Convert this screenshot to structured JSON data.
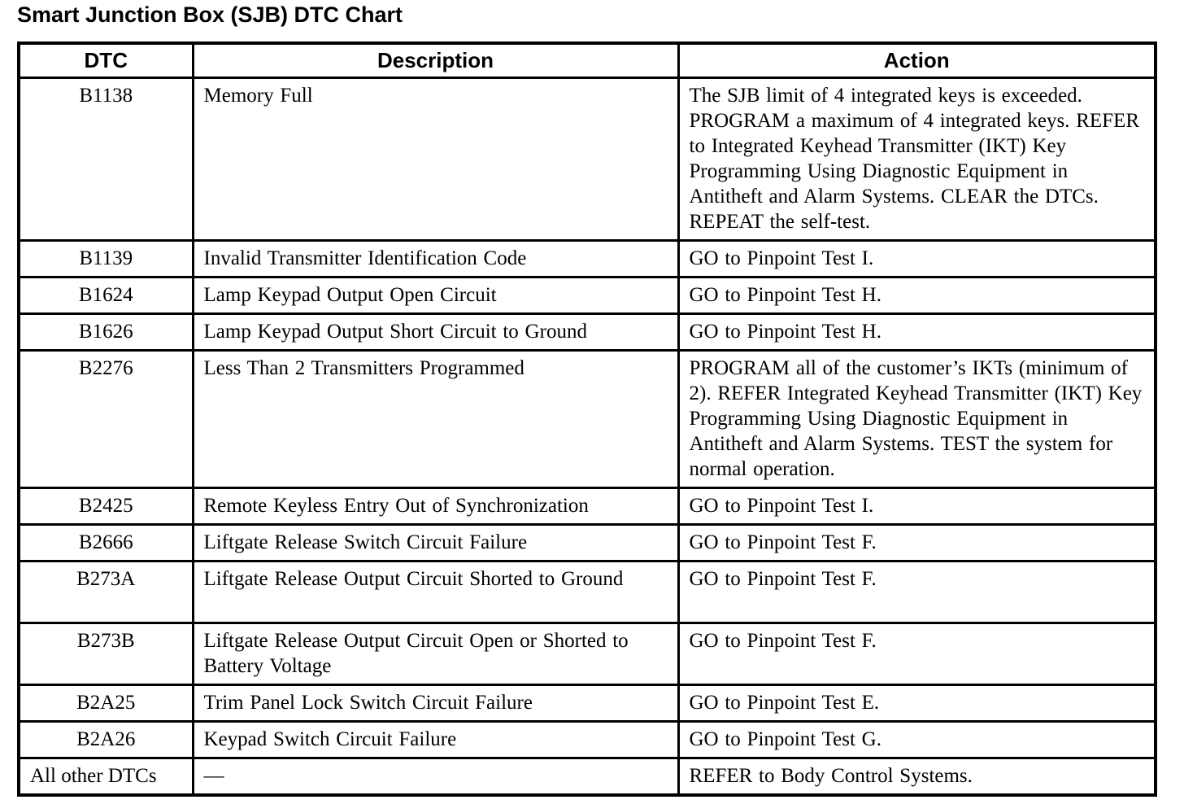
{
  "title": "Smart Junction Box (SJB) DTC Chart",
  "table": {
    "headers": [
      "DTC",
      "Description",
      "Action"
    ],
    "rows": [
      {
        "dtc": "B1138",
        "description": "Memory Full",
        "action": "The SJB limit of 4 integrated keys is exceeded. PROGRAM a maximum of 4 integrated keys. REFER to Integrated Keyhead Transmitter (IKT) Key Programming Using Diagnostic Equipment in Antitheft and Alarm Systems. CLEAR the DTCs. REPEAT the self-test."
      },
      {
        "dtc": "B1139",
        "description": "Invalid Transmitter Identification Code",
        "action": "GO to Pinpoint Test I."
      },
      {
        "dtc": "B1624",
        "description": "Lamp Keypad Output Open Circuit",
        "action": "GO to Pinpoint Test H."
      },
      {
        "dtc": "B1626",
        "description": "Lamp Keypad Output Short Circuit to Ground",
        "action": "GO to Pinpoint Test H."
      },
      {
        "dtc": "B2276",
        "description": "Less Than 2 Transmitters Programmed",
        "action": "PROGRAM all of the customer’s IKTs (minimum of 2). REFER Integrated Keyhead Transmitter (IKT) Key Programming Using Diagnostic Equipment in Antitheft and Alarm Systems. TEST the system for normal operation."
      },
      {
        "dtc": "B2425",
        "description": "Remote Keyless Entry Out of Synchronization",
        "action": "GO to Pinpoint Test I."
      },
      {
        "dtc": "B2666",
        "description": "Liftgate Release Switch Circuit Failure",
        "action": "GO to Pinpoint Test F."
      },
      {
        "dtc": "B273A",
        "description": "Liftgate Release Output Circuit Shorted to Ground",
        "action": "GO to Pinpoint Test F."
      },
      {
        "dtc": "B273B",
        "description": "Liftgate Release Output Circuit Open or Shorted to Battery Voltage",
        "action": "GO to Pinpoint Test F."
      },
      {
        "dtc": "B2A25",
        "description": "Trim Panel Lock Switch Circuit Failure",
        "action": "GO to Pinpoint Test E."
      },
      {
        "dtc": "B2A26",
        "description": "Keypad Switch Circuit Failure",
        "action": "GO to Pinpoint Test G."
      },
      {
        "dtc": "All other DTCs",
        "description": "—",
        "action": "REFER to Body Control Systems."
      }
    ]
  }
}
